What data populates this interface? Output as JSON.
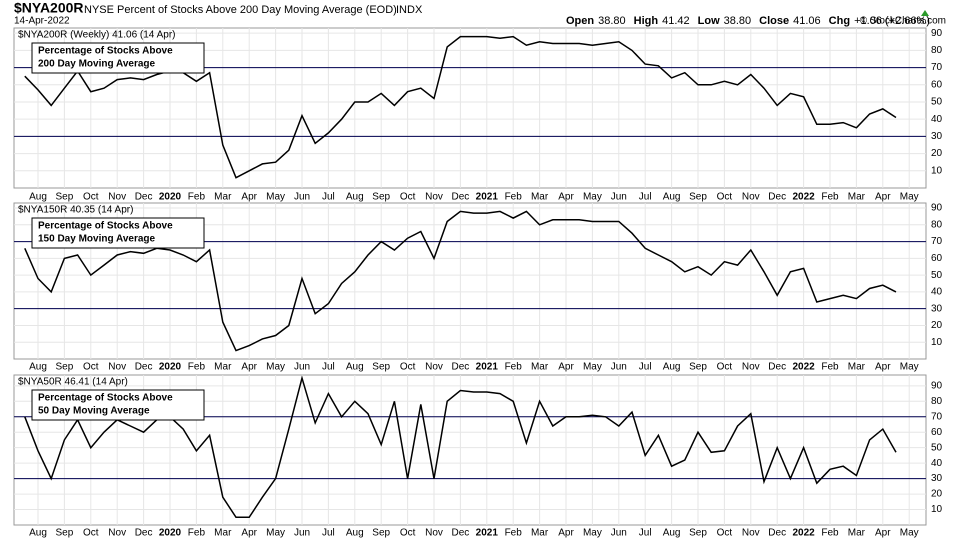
{
  "header": {
    "symbol": "$NYA200R",
    "description": "NYSE Percent of Stocks Above 200 Day Moving Average (EOD)",
    "exchange": "INDX",
    "date": "14-Apr-2022",
    "quote": [
      {
        "label": "Open",
        "value": "38.80"
      },
      {
        "label": "High",
        "value": "41.42"
      },
      {
        "label": "Low",
        "value": "38.80"
      },
      {
        "label": "Close",
        "value": "41.06"
      },
      {
        "label": "Chg",
        "value": "+1.06 (+2.66%)"
      }
    ],
    "credit": "© StockCharts.com"
  },
  "chart_data": [
    {
      "type": "line",
      "legend": "$NYA200R (Weekly) 41.06 (14 Apr)",
      "annotation": [
        "Percentage of Stocks Above",
        "200 Day Moving Average"
      ],
      "categories": [
        null,
        "Aug",
        null,
        "Sep",
        null,
        "Oct",
        null,
        "Nov",
        null,
        "Dec",
        null,
        "2020",
        null,
        "Feb",
        null,
        "Mar",
        null,
        "Apr",
        null,
        "May",
        null,
        "Jun",
        null,
        "Jul",
        null,
        "Aug",
        null,
        "Sep",
        null,
        "Oct",
        null,
        "Nov",
        null,
        "Dec",
        null,
        "2021",
        null,
        "Feb",
        null,
        "Mar",
        null,
        "Apr",
        null,
        "May",
        null,
        "Jun",
        null,
        "Jul",
        null,
        "Aug",
        null,
        "Sep",
        null,
        "Oct",
        null,
        "Nov",
        null,
        "Dec",
        null,
        "2022",
        null,
        "Feb",
        null,
        "Mar",
        null,
        "Apr",
        null,
        "May"
      ],
      "values": [
        65,
        57,
        48,
        58,
        68,
        56,
        58,
        63,
        64,
        63,
        66,
        68,
        67,
        62,
        67,
        25,
        6,
        10,
        14,
        15,
        22,
        42,
        26,
        32,
        40,
        50,
        50,
        55,
        48,
        56,
        58,
        52,
        82,
        88,
        88,
        88,
        87,
        88,
        83,
        85,
        84,
        84,
        84,
        83,
        84,
        85,
        80,
        72,
        71,
        64,
        67,
        60,
        60,
        62,
        60,
        66,
        58,
        48,
        55,
        53,
        37,
        37,
        38,
        35,
        43,
        46,
        41,
        null
      ],
      "color": "#000000",
      "ylim": [
        0,
        93
      ],
      "yticks": [
        10,
        20,
        30,
        40,
        50,
        60,
        70,
        80,
        90
      ],
      "hlines": [
        30,
        70
      ],
      "grid": true
    },
    {
      "type": "line",
      "legend": "$NYA150R 40.35 (14 Apr)",
      "annotation": [
        "Percentage of Stocks Above",
        "150 Day Moving Average"
      ],
      "categories": [
        null,
        "Aug",
        null,
        "Sep",
        null,
        "Oct",
        null,
        "Nov",
        null,
        "Dec",
        null,
        "2020",
        null,
        "Feb",
        null,
        "Mar",
        null,
        "Apr",
        null,
        "May",
        null,
        "Jun",
        null,
        "Jul",
        null,
        "Aug",
        null,
        "Sep",
        null,
        "Oct",
        null,
        "Nov",
        null,
        "Dec",
        null,
        "2021",
        null,
        "Feb",
        null,
        "Mar",
        null,
        "Apr",
        null,
        "May",
        null,
        "Jun",
        null,
        "Jul",
        null,
        "Aug",
        null,
        "Sep",
        null,
        "Oct",
        null,
        "Nov",
        null,
        "Dec",
        null,
        "2022",
        null,
        "Feb",
        null,
        "Mar",
        null,
        "Apr",
        null,
        "May"
      ],
      "values": [
        66,
        48,
        40,
        60,
        62,
        50,
        56,
        62,
        64,
        63,
        66,
        65,
        62,
        58,
        65,
        22,
        5,
        8,
        12,
        14,
        20,
        48,
        27,
        33,
        45,
        52,
        62,
        70,
        65,
        72,
        76,
        60,
        82,
        88,
        87,
        87,
        88,
        84,
        88,
        80,
        83,
        83,
        83,
        82,
        82,
        82,
        75,
        66,
        62,
        58,
        52,
        55,
        50,
        58,
        56,
        65,
        52,
        38,
        52,
        54,
        34,
        36,
        38,
        36,
        42,
        44,
        40,
        null
      ],
      "color": "#000000",
      "ylim": [
        0,
        93
      ],
      "yticks": [
        10,
        20,
        30,
        40,
        50,
        60,
        70,
        80,
        90
      ],
      "hlines": [
        30,
        70
      ],
      "grid": true
    },
    {
      "type": "line",
      "legend": "$NYA50R 46.41 (14 Apr)",
      "annotation": [
        "Percentage of Stocks Above",
        "50 Day Moving Average"
      ],
      "categories": [
        null,
        "Aug",
        null,
        "Sep",
        null,
        "Oct",
        null,
        "Nov",
        null,
        "Dec",
        null,
        "2020",
        null,
        "Feb",
        null,
        "Mar",
        null,
        "Apr",
        null,
        "May",
        null,
        "Jun",
        null,
        "Jul",
        null,
        "Aug",
        null,
        "Sep",
        null,
        "Oct",
        null,
        "Nov",
        null,
        "Dec",
        null,
        "2021",
        null,
        "Feb",
        null,
        "Mar",
        null,
        "Apr",
        null,
        "May",
        null,
        "Jun",
        null,
        "Jul",
        null,
        "Aug",
        null,
        "Sep",
        null,
        "Oct",
        null,
        "Nov",
        null,
        "Dec",
        null,
        "2022",
        null,
        "Feb",
        null,
        "Mar",
        null,
        "Apr",
        null,
        "May"
      ],
      "values": [
        70,
        48,
        30,
        55,
        68,
        50,
        60,
        68,
        64,
        60,
        68,
        70,
        62,
        48,
        58,
        18,
        5,
        5,
        18,
        30,
        62,
        95,
        66,
        85,
        70,
        80,
        72,
        52,
        80,
        30,
        78,
        30,
        80,
        87,
        86,
        86,
        85,
        80,
        53,
        80,
        64,
        70,
        70,
        71,
        70,
        64,
        73,
        45,
        58,
        38,
        42,
        60,
        47,
        48,
        64,
        72,
        28,
        50,
        30,
        50,
        27,
        36,
        38,
        32,
        55,
        62,
        47,
        null
      ],
      "color": "#000000",
      "ylim": [
        0,
        97
      ],
      "yticks": [
        10,
        20,
        30,
        40,
        50,
        60,
        70,
        80,
        90
      ],
      "hlines": [
        30,
        70
      ],
      "grid": true
    }
  ]
}
